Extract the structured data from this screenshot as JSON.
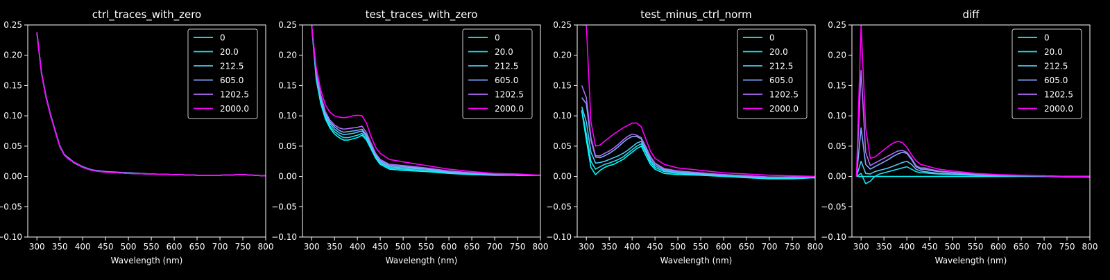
{
  "figure": {
    "background": "#000000",
    "foreground": "#ffffff"
  },
  "series_legend": [
    "0",
    "20.0",
    "212.5",
    "605.0",
    "1202.5",
    "2000.0"
  ],
  "series_colors": [
    "#00ffff",
    "#1de2ee",
    "#4dc6f5",
    "#80a9ff",
    "#b26cf7",
    "#ff00ff"
  ],
  "chart_data": [
    {
      "type": "line",
      "title": "ctrl_traces_with_zero",
      "xlabel": "Wavelength (nm)",
      "ylabel": "",
      "xlim": [
        280,
        800
      ],
      "ylim": [
        -0.1,
        0.25
      ],
      "xticks": [
        300,
        350,
        400,
        450,
        500,
        550,
        600,
        650,
        700,
        750,
        800
      ],
      "yticks": [
        -0.1,
        -0.05,
        0.0,
        0.05,
        0.1,
        0.15,
        0.2,
        0.25
      ],
      "ytick_labels": [
        "−0.10",
        "−0.05",
        "0.00",
        "0.05",
        "0.10",
        "0.15",
        "0.20",
        "0.25"
      ],
      "legend_position": "upper-right",
      "grid": false,
      "x": [
        300,
        310,
        320,
        330,
        340,
        350,
        360,
        370,
        380,
        390,
        400,
        420,
        450,
        480,
        500,
        550,
        600,
        650,
        700,
        750,
        800
      ],
      "series": [
        {
          "name": "0",
          "values": [
            0.238,
            0.17,
            0.13,
            0.1,
            0.075,
            0.05,
            0.035,
            0.028,
            0.024,
            0.02,
            0.015,
            0.01,
            0.007,
            0.006,
            0.005,
            0.004,
            0.003,
            0.002,
            0.002,
            0.003,
            0.001
          ]
        },
        {
          "name": "20.0",
          "values": [
            0.238,
            0.172,
            0.132,
            0.102,
            0.076,
            0.051,
            0.036,
            0.029,
            0.024,
            0.02,
            0.016,
            0.011,
            0.008,
            0.006,
            0.006,
            0.004,
            0.003,
            0.002,
            0.002,
            0.003,
            0.001
          ]
        },
        {
          "name": "212.5",
          "values": [
            0.236,
            0.17,
            0.131,
            0.1,
            0.075,
            0.05,
            0.036,
            0.03,
            0.024,
            0.02,
            0.016,
            0.01,
            0.008,
            0.007,
            0.006,
            0.004,
            0.003,
            0.002,
            0.002,
            0.003,
            0.001
          ]
        },
        {
          "name": "605.0",
          "values": [
            0.237,
            0.171,
            0.13,
            0.101,
            0.074,
            0.049,
            0.035,
            0.029,
            0.023,
            0.019,
            0.015,
            0.01,
            0.007,
            0.006,
            0.005,
            0.004,
            0.003,
            0.002,
            0.002,
            0.003,
            0.001
          ]
        },
        {
          "name": "1202.5",
          "values": [
            0.238,
            0.171,
            0.131,
            0.101,
            0.075,
            0.05,
            0.035,
            0.029,
            0.024,
            0.02,
            0.015,
            0.01,
            0.008,
            0.006,
            0.005,
            0.004,
            0.003,
            0.002,
            0.002,
            0.003,
            0.001
          ]
        },
        {
          "name": "2000.0",
          "values": [
            0.238,
            0.17,
            0.13,
            0.1,
            0.075,
            0.05,
            0.035,
            0.028,
            0.024,
            0.02,
            0.015,
            0.01,
            0.007,
            0.006,
            0.005,
            0.004,
            0.003,
            0.002,
            0.002,
            0.003,
            0.001
          ]
        }
      ]
    },
    {
      "type": "line",
      "title": "test_traces_with_zero",
      "xlabel": "Wavelength (nm)",
      "ylabel": "",
      "xlim": [
        280,
        800
      ],
      "ylim": [
        -0.1,
        0.25
      ],
      "xticks": [
        300,
        350,
        400,
        450,
        500,
        550,
        600,
        650,
        700,
        750,
        800
      ],
      "yticks": [
        -0.1,
        -0.05,
        0.0,
        0.05,
        0.1,
        0.15,
        0.2,
        0.25
      ],
      "ytick_labels": [
        "−0.10",
        "−0.05",
        "0.00",
        "0.05",
        "0.10",
        "0.15",
        "0.20",
        "0.25"
      ],
      "legend_position": "upper-right",
      "grid": false,
      "x": [
        300,
        310,
        320,
        330,
        340,
        350,
        360,
        370,
        380,
        390,
        400,
        410,
        420,
        430,
        440,
        450,
        470,
        500,
        550,
        600,
        650,
        700,
        750,
        800
      ],
      "series": [
        {
          "name": "0",
          "values": [
            0.25,
            0.16,
            0.12,
            0.095,
            0.08,
            0.07,
            0.064,
            0.06,
            0.06,
            0.062,
            0.064,
            0.068,
            0.06,
            0.045,
            0.03,
            0.02,
            0.012,
            0.01,
            0.008,
            0.005,
            0.003,
            0.002,
            0.002,
            0.002
          ]
        },
        {
          "name": "20.0",
          "values": [
            0.25,
            0.165,
            0.124,
            0.098,
            0.083,
            0.074,
            0.068,
            0.064,
            0.064,
            0.066,
            0.068,
            0.071,
            0.063,
            0.048,
            0.032,
            0.022,
            0.014,
            0.012,
            0.01,
            0.006,
            0.004,
            0.003,
            0.002,
            0.002
          ]
        },
        {
          "name": "212.5",
          "values": [
            0.25,
            0.168,
            0.128,
            0.101,
            0.087,
            0.078,
            0.072,
            0.069,
            0.07,
            0.071,
            0.073,
            0.075,
            0.066,
            0.05,
            0.034,
            0.024,
            0.016,
            0.014,
            0.012,
            0.007,
            0.005,
            0.003,
            0.002,
            0.002
          ]
        },
        {
          "name": "605.0",
          "values": [
            0.25,
            0.17,
            0.131,
            0.104,
            0.09,
            0.082,
            0.076,
            0.073,
            0.074,
            0.075,
            0.076,
            0.078,
            0.068,
            0.052,
            0.036,
            0.026,
            0.018,
            0.016,
            0.013,
            0.008,
            0.005,
            0.003,
            0.002,
            0.002
          ]
        },
        {
          "name": "1202.5",
          "values": [
            0.25,
            0.172,
            0.134,
            0.107,
            0.093,
            0.085,
            0.08,
            0.078,
            0.079,
            0.08,
            0.081,
            0.083,
            0.072,
            0.055,
            0.038,
            0.028,
            0.02,
            0.018,
            0.014,
            0.009,
            0.006,
            0.004,
            0.003,
            0.002
          ]
        },
        {
          "name": "2000.0",
          "values": [
            0.25,
            0.18,
            0.142,
            0.118,
            0.106,
            0.1,
            0.098,
            0.097,
            0.098,
            0.1,
            0.101,
            0.1,
            0.088,
            0.066,
            0.048,
            0.038,
            0.028,
            0.024,
            0.018,
            0.012,
            0.008,
            0.005,
            0.004,
            0.002
          ]
        }
      ]
    },
    {
      "type": "line",
      "title": "test_minus_ctrl_norm",
      "xlabel": "Wavelength (nm)",
      "ylabel": "",
      "xlim": [
        280,
        800
      ],
      "ylim": [
        -0.1,
        0.25
      ],
      "xticks": [
        300,
        350,
        400,
        450,
        500,
        550,
        600,
        650,
        700,
        750,
        800
      ],
      "yticks": [
        -0.1,
        -0.05,
        0.0,
        0.05,
        0.1,
        0.15,
        0.2,
        0.25
      ],
      "ytick_labels": [
        "−0.10",
        "−0.05",
        "0.00",
        "0.05",
        "0.10",
        "0.15",
        "0.20",
        "0.25"
      ],
      "legend_position": "upper-right",
      "grid": false,
      "x": [
        290,
        300,
        310,
        320,
        330,
        340,
        350,
        360,
        370,
        380,
        390,
        400,
        410,
        420,
        430,
        440,
        450,
        470,
        500,
        550,
        600,
        650,
        700,
        750,
        800
      ],
      "series": [
        {
          "name": "0",
          "values": [
            0.108,
            0.06,
            0.015,
            0.003,
            0.01,
            0.015,
            0.018,
            0.02,
            0.024,
            0.028,
            0.034,
            0.04,
            0.046,
            0.05,
            0.035,
            0.02,
            0.012,
            0.005,
            0.003,
            0.002,
            0.0,
            -0.002,
            -0.004,
            -0.004,
            -0.002
          ]
        },
        {
          "name": "20.0",
          "values": [
            0.11,
            0.07,
            0.025,
            0.012,
            0.016,
            0.02,
            0.022,
            0.025,
            0.028,
            0.032,
            0.038,
            0.044,
            0.05,
            0.054,
            0.04,
            0.024,
            0.015,
            0.008,
            0.005,
            0.003,
            0.001,
            -0.001,
            -0.003,
            -0.003,
            -0.002
          ]
        },
        {
          "name": "212.5",
          "values": [
            0.115,
            0.09,
            0.04,
            0.022,
            0.023,
            0.025,
            0.028,
            0.031,
            0.034,
            0.038,
            0.043,
            0.049,
            0.055,
            0.058,
            0.043,
            0.027,
            0.018,
            0.01,
            0.006,
            0.004,
            0.002,
            0.0,
            -0.002,
            -0.002,
            -0.001
          ]
        },
        {
          "name": "605.0",
          "values": [
            0.13,
            0.12,
            0.06,
            0.032,
            0.031,
            0.034,
            0.038,
            0.043,
            0.049,
            0.056,
            0.062,
            0.066,
            0.066,
            0.062,
            0.047,
            0.031,
            0.021,
            0.012,
            0.008,
            0.005,
            0.003,
            0.001,
            -0.001,
            -0.001,
            -0.001
          ]
        },
        {
          "name": "1202.5",
          "values": [
            0.15,
            0.13,
            0.064,
            0.034,
            0.034,
            0.038,
            0.042,
            0.047,
            0.053,
            0.06,
            0.066,
            0.07,
            0.068,
            0.064,
            0.049,
            0.033,
            0.022,
            0.013,
            0.009,
            0.006,
            0.003,
            0.001,
            -0.001,
            -0.001,
            -0.001
          ]
        },
        {
          "name": "2000.0",
          "values": [
            0.25,
            0.25,
            0.09,
            0.05,
            0.052,
            0.058,
            0.064,
            0.07,
            0.075,
            0.08,
            0.084,
            0.088,
            0.088,
            0.082,
            0.062,
            0.042,
            0.03,
            0.02,
            0.014,
            0.01,
            0.006,
            0.004,
            0.002,
            0.001,
            0.0
          ]
        }
      ]
    },
    {
      "type": "line",
      "title": "diff",
      "xlabel": "Wavelength (nm)",
      "ylabel": "",
      "xlim": [
        280,
        800
      ],
      "ylim": [
        -0.1,
        0.25
      ],
      "xticks": [
        300,
        350,
        400,
        450,
        500,
        550,
        600,
        650,
        700,
        750,
        800
      ],
      "yticks": [
        -0.1,
        -0.05,
        0.0,
        0.05,
        0.1,
        0.15,
        0.2,
        0.25
      ],
      "ytick_labels": [
        "−0.10",
        "−0.05",
        "0.00",
        "0.05",
        "0.10",
        "0.15",
        "0.20",
        "0.25"
      ],
      "legend_position": "upper-right",
      "grid": false,
      "x": [
        290,
        300,
        310,
        320,
        330,
        340,
        350,
        360,
        370,
        380,
        390,
        400,
        410,
        420,
        430,
        440,
        450,
        470,
        500,
        550,
        600,
        650,
        700,
        750,
        800
      ],
      "series": [
        {
          "name": "0",
          "values": [
            0.0,
            0.0,
            0.0,
            0.0,
            0.0,
            0.0,
            0.0,
            0.0,
            0.0,
            0.0,
            0.0,
            0.0,
            0.0,
            0.0,
            0.0,
            0.0,
            0.0,
            0.0,
            0.0,
            0.0,
            0.0,
            0.0,
            0.0,
            0.0,
            0.0
          ]
        },
        {
          "name": "20.0",
          "values": [
            0.0,
            0.005,
            -0.012,
            -0.008,
            0.0,
            0.004,
            0.006,
            0.008,
            0.01,
            0.012,
            0.014,
            0.016,
            0.012,
            0.008,
            0.006,
            0.006,
            0.005,
            0.004,
            0.003,
            0.002,
            0.001,
            0.0,
            0.0,
            -0.001,
            -0.001
          ]
        },
        {
          "name": "212.5",
          "values": [
            0.0,
            0.025,
            0.005,
            0.004,
            0.008,
            0.01,
            0.012,
            0.014,
            0.017,
            0.02,
            0.023,
            0.025,
            0.02,
            0.012,
            0.009,
            0.008,
            0.007,
            0.005,
            0.004,
            0.002,
            0.001,
            0.001,
            0.0,
            0.0,
            -0.001
          ]
        },
        {
          "name": "605.0",
          "values": [
            0.0,
            0.08,
            0.02,
            0.012,
            0.016,
            0.02,
            0.024,
            0.028,
            0.033,
            0.037,
            0.04,
            0.038,
            0.028,
            0.016,
            0.012,
            0.012,
            0.01,
            0.008,
            0.006,
            0.003,
            0.002,
            0.001,
            0.001,
            0.0,
            0.0
          ]
        },
        {
          "name": "1202.5",
          "values": [
            0.0,
            0.175,
            0.04,
            0.018,
            0.022,
            0.026,
            0.03,
            0.034,
            0.038,
            0.042,
            0.043,
            0.04,
            0.03,
            0.018,
            0.014,
            0.014,
            0.012,
            0.009,
            0.007,
            0.004,
            0.002,
            0.001,
            0.001,
            0.0,
            0.0
          ]
        },
        {
          "name": "2000.0",
          "values": [
            0.0,
            0.25,
            0.08,
            0.03,
            0.032,
            0.038,
            0.044,
            0.05,
            0.055,
            0.058,
            0.056,
            0.048,
            0.036,
            0.026,
            0.02,
            0.018,
            0.016,
            0.012,
            0.009,
            0.005,
            0.003,
            0.002,
            0.001,
            0.0,
            0.0
          ]
        }
      ]
    }
  ]
}
